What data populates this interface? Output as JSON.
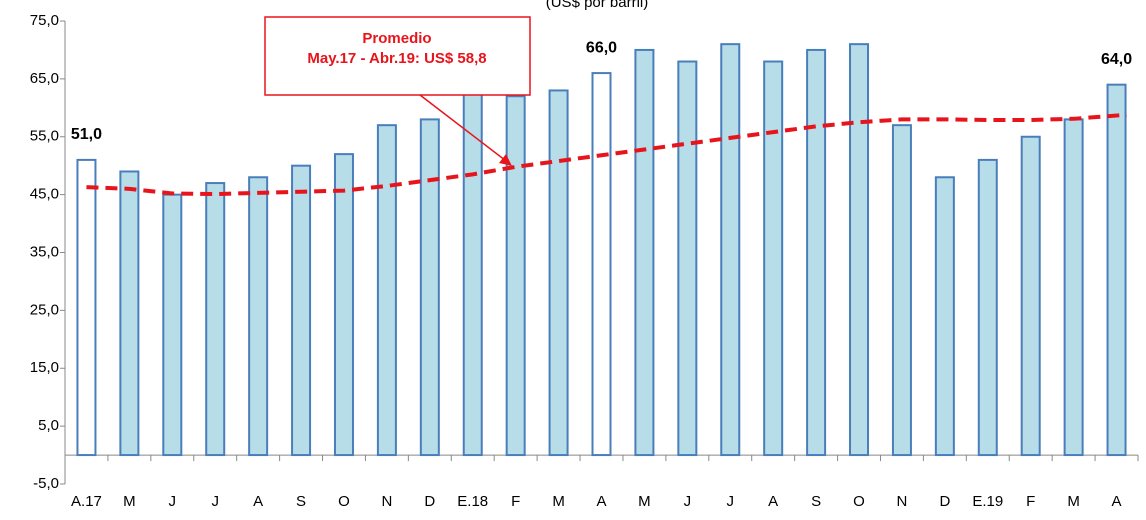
{
  "chart_data": {
    "type": "bar",
    "subtitle": "(US$ por barril)",
    "categories": [
      "A.17",
      "M",
      "J",
      "J",
      "A",
      "S",
      "O",
      "N",
      "D",
      "E.18",
      "F",
      "M",
      "A",
      "M",
      "J",
      "J",
      "A",
      "S",
      "O",
      "N",
      "D",
      "E.19",
      "F",
      "M",
      "A"
    ],
    "series": [
      {
        "type": "bar",
        "color": "#b7dde8",
        "stroke": "#4a7ebb",
        "colors": [
          "#ffffff",
          "#b7dde8",
          "#b7dde8",
          "#b7dde8",
          "#b7dde8",
          "#b7dde8",
          "#b7dde8",
          "#b7dde8",
          "#b7dde8",
          "#b7dde8",
          "#b7dde8",
          "#b7dde8",
          "#ffffff",
          "#b7dde8",
          "#b7dde8",
          "#b7dde8",
          "#b7dde8",
          "#b7dde8",
          "#b7dde8",
          "#b7dde8",
          "#b7dde8",
          "#b7dde8",
          "#b7dde8",
          "#b7dde8",
          "#b7dde8"
        ],
        "values": [
          51,
          49,
          45,
          47,
          48,
          50,
          52,
          57,
          58,
          64,
          62,
          63,
          66,
          70,
          68,
          71,
          68,
          70,
          71,
          57,
          48,
          51,
          55,
          58,
          64
        ],
        "value_labels": [
          "51,0",
          null,
          null,
          null,
          null,
          null,
          null,
          null,
          null,
          null,
          null,
          null,
          "66,0",
          null,
          null,
          null,
          null,
          null,
          null,
          null,
          null,
          null,
          null,
          null,
          "64,0"
        ]
      },
      {
        "type": "line",
        "color": "#e8141b",
        "values": [
          46.3,
          46,
          45.2,
          45.1,
          45.3,
          45.5,
          45.7,
          46.5,
          47.5,
          48.5,
          49.8,
          50.8,
          51.8,
          52.8,
          53.8,
          54.8,
          55.8,
          56.8,
          57.5,
          58,
          58,
          57.9,
          57.9,
          58.1,
          58.8
        ]
      }
    ],
    "annotation": {
      "lines": [
        "Promedio",
        "May.17 - Abr.19: US$ 58,8"
      ],
      "color": "#e8141b"
    },
    "ylim": [
      -5,
      75
    ],
    "yticks": [
      {
        "value": -5,
        "label": "-5,0"
      },
      {
        "value": 5,
        "label": "5,0"
      },
      {
        "value": 15,
        "label": "15,0"
      },
      {
        "value": 25,
        "label": "25,0"
      },
      {
        "value": 35,
        "label": "35,0"
      },
      {
        "value": 45,
        "label": "45,0"
      },
      {
        "value": 55,
        "label": "55,0"
      },
      {
        "value": 65,
        "label": "65,0"
      },
      {
        "value": 75,
        "label": "75,0"
      }
    ]
  }
}
